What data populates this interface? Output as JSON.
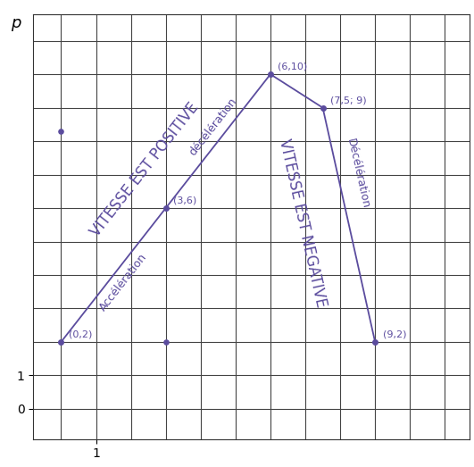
{
  "chart_data": {
    "type": "line",
    "y_label": "p",
    "xlim": [
      -0.8,
      11.7
    ],
    "ylim": [
      -0.9,
      11.8
    ],
    "xticks": [
      1
    ],
    "yticks": [
      0,
      1
    ],
    "grid": true,
    "color": "#5b4c9e",
    "marker": "o",
    "line_style": "solid",
    "x": [
      0,
      3,
      6,
      7.5,
      9
    ],
    "values": [
      2,
      6,
      10,
      9,
      2
    ],
    "point_labels": [
      "(0,2)",
      "(3,6)",
      "(6,10)",
      "(7,5; 9)",
      "(9,2)"
    ],
    "extra_points": {
      "x": [
        0,
        3
      ],
      "values": [
        8.3,
        2
      ]
    },
    "annotations": [
      "Accélération",
      "décélération",
      "Décélération",
      "VITESSE EST POSITIVE",
      "VITESSE EST NEGATIVE"
    ]
  }
}
